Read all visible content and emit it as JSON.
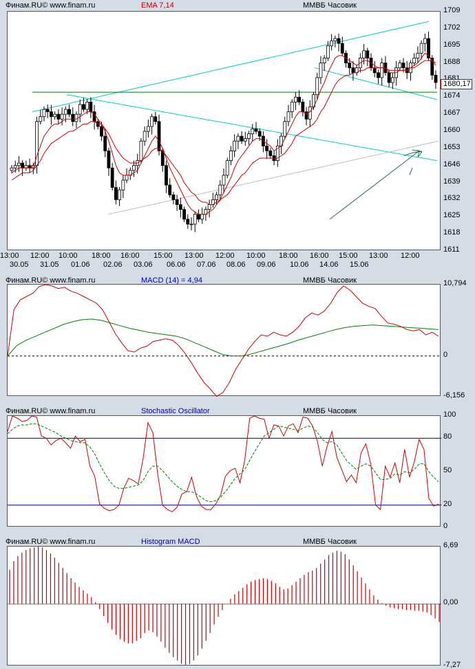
{
  "panels": {
    "price": {
      "source": "Финам.RU©  www.finam.ru",
      "indicator": "EMA 7,14",
      "security": "ММВБ Часовик",
      "last_price": "1680,17",
      "y_labels": [
        "1709",
        "1702",
        "1695",
        "1688",
        "1681",
        "1674",
        "1667",
        "1660",
        "1653",
        "1646",
        "1639",
        "1632",
        "1625",
        "1618",
        "1611"
      ]
    },
    "macd": {
      "source": "Финам.RU©  www.finam.ru",
      "indicator": "MACD (14) = 4,94",
      "security": "ММВБ Часовик",
      "y_labels": [
        "10,794",
        "0",
        "-6,156"
      ]
    },
    "stoch": {
      "source": "Финам.RU©  www.finam.ru",
      "indicator": "Stochastic Oscillator",
      "security": "ММВБ Часовик",
      "y_labels": [
        "100",
        "80",
        "50",
        "20",
        "0"
      ]
    },
    "hist": {
      "source": "Финам.RU©  www.finam.ru",
      "indicator": "Histogram MACD",
      "security": "ММВБ Часовик",
      "y_labels": [
        "6,69",
        "0,00",
        "-7,27"
      ]
    }
  },
  "x_axis": {
    "times": [
      "13:00",
      "12:00",
      "10:00",
      "18:00",
      "16:00",
      "15:00",
      "13:00",
      "12:00",
      "10:00",
      "18:00",
      "16:00",
      "15:00",
      "13:00",
      "12:00"
    ],
    "dates": [
      "30.05",
      "31.05",
      "01.06",
      "02.06",
      "03.06",
      "06.06",
      "07.06",
      "08.06",
      "09.06",
      "10.06",
      "14.06",
      "15.06"
    ]
  },
  "colors": {
    "up": "#ffffff",
    "down": "#000000",
    "ema_fast": "#cc0000",
    "ema_slow": "#cc0000",
    "cyan": "#00cccc",
    "green": "#008000",
    "arrow": "#1f6b4a",
    "macd_line": "#cc0000",
    "signal": "#008000",
    "stoch_k": "#cc0000",
    "stoch_d": "#008000",
    "hist": "#cc0000"
  },
  "chart_data": [
    {
      "type": "candlestick",
      "ylim": [
        1611,
        1709
      ],
      "closes": [
        1645,
        1646,
        1647,
        1645,
        1646,
        1645,
        1646,
        1664,
        1666,
        1669,
        1668,
        1666,
        1667,
        1665,
        1667,
        1669,
        1667,
        1664,
        1667,
        1671,
        1669,
        1672,
        1668,
        1664,
        1662,
        1658,
        1652,
        1645,
        1637,
        1632,
        1636,
        1640,
        1642,
        1644,
        1646,
        1648,
        1656,
        1660,
        1662,
        1666,
        1664,
        1652,
        1646,
        1638,
        1634,
        1632,
        1630,
        1628,
        1624,
        1622,
        1622,
        1626,
        1624,
        1626,
        1628,
        1630,
        1632,
        1634,
        1638,
        1642,
        1648,
        1652,
        1656,
        1658,
        1656,
        1657,
        1659,
        1661,
        1660,
        1658,
        1654,
        1652,
        1650,
        1648,
        1654,
        1658,
        1664,
        1668,
        1672,
        1674,
        1672,
        1668,
        1665,
        1670,
        1675,
        1682,
        1688,
        1690,
        1695,
        1697,
        1698,
        1696,
        1692,
        1688,
        1686,
        1684,
        1686,
        1690,
        1693,
        1690,
        1686,
        1684,
        1682,
        1688,
        1684,
        1680,
        1682,
        1686,
        1688,
        1686,
        1684,
        1688,
        1690,
        1692,
        1696,
        1698,
        1690,
        1683,
        1680
      ],
      "ema_fast": [
        1643,
        1644,
        1645,
        1645,
        1645,
        1645,
        1645,
        1650,
        1654,
        1658,
        1660,
        1662,
        1663,
        1663,
        1664,
        1665,
        1665,
        1665,
        1665,
        1666,
        1667,
        1668,
        1668,
        1667,
        1665,
        1663,
        1660,
        1656,
        1651,
        1646,
        1643,
        1642,
        1642,
        1642,
        1643,
        1644,
        1647,
        1650,
        1653,
        1656,
        1658,
        1656,
        1653,
        1649,
        1645,
        1642,
        1639,
        1636,
        1633,
        1630,
        1628,
        1627,
        1626,
        1626,
        1626,
        1627,
        1628,
        1630,
        1632,
        1635,
        1638,
        1641,
        1645,
        1648,
        1650,
        1652,
        1654,
        1656,
        1657,
        1657,
        1656,
        1655,
        1654,
        1652,
        1653,
        1654,
        1657,
        1660,
        1663,
        1666,
        1668,
        1668,
        1667,
        1668,
        1670,
        1673,
        1677,
        1680,
        1684,
        1687,
        1690,
        1691,
        1691,
        1690,
        1689,
        1688,
        1687,
        1688,
        1689,
        1689,
        1688,
        1687,
        1686,
        1686,
        1686,
        1684,
        1684,
        1684,
        1685,
        1685,
        1685,
        1686,
        1687,
        1688,
        1690,
        1692,
        1691,
        1689,
        1687
      ],
      "ema_slow": [
        1640,
        1641,
        1642,
        1643,
        1643,
        1643,
        1644,
        1646,
        1648,
        1651,
        1653,
        1655,
        1656,
        1657,
        1658,
        1659,
        1660,
        1660,
        1661,
        1662,
        1663,
        1663,
        1664,
        1664,
        1663,
        1663,
        1661,
        1659,
        1656,
        1653,
        1651,
        1649,
        1648,
        1647,
        1647,
        1647,
        1648,
        1649,
        1650,
        1652,
        1653,
        1653,
        1652,
        1650,
        1648,
        1646,
        1644,
        1642,
        1639,
        1637,
        1635,
        1634,
        1632,
        1631,
        1631,
        1630,
        1630,
        1631,
        1632,
        1633,
        1634,
        1636,
        1638,
        1640,
        1642,
        1643,
        1645,
        1647,
        1648,
        1649,
        1649,
        1649,
        1649,
        1649,
        1649,
        1650,
        1651,
        1653,
        1655,
        1658,
        1659,
        1660,
        1661,
        1662,
        1663,
        1665,
        1668,
        1670,
        1673,
        1676,
        1679,
        1681,
        1682,
        1683,
        1683,
        1684,
        1684,
        1685,
        1685,
        1686,
        1686,
        1686,
        1686,
        1686,
        1686,
        1685,
        1685,
        1685,
        1685,
        1685,
        1685,
        1686,
        1686,
        1687,
        1688,
        1689,
        1689,
        1689,
        1688
      ]
    },
    {
      "type": "line",
      "ylim": [
        -6.156,
        10.794
      ],
      "series": [
        {
          "values": [
            0,
            7,
            8.5,
            9,
            9.5,
            10.5,
            10.8,
            10.6,
            10.2,
            10.4,
            9.8,
            9.5,
            9,
            8.5,
            8,
            7,
            5.2,
            3.4,
            2,
            0.8,
            0.6,
            1.2,
            1.5,
            2.2,
            2.4,
            2.6,
            2.4,
            1.6,
            0.4,
            -1,
            -2.6,
            -4,
            -5,
            -6.1,
            -5.5,
            -4,
            -2,
            -0.5,
            1,
            2.2,
            3.2,
            3,
            3.6,
            3.2,
            3,
            3.6,
            4.5,
            5.8,
            6.5,
            6.2,
            6.8,
            8,
            9.6,
            10.6,
            10,
            9,
            8,
            7.5,
            7.2,
            6,
            5,
            4.8,
            4.5,
            4,
            3.8,
            4,
            3.2,
            3.6,
            3
          ]
        },
        {
          "values": [
            0,
            1.6,
            2.4,
            3,
            3.6,
            4.2,
            4.8,
            5.2,
            5.5,
            5.6,
            5.4,
            5,
            4.6,
            4.2,
            3.9,
            3.6,
            3.4,
            3.2,
            3,
            2.6,
            2,
            1.4,
            0.8,
            0.2,
            0,
            0,
            0.3,
            0.7,
            1.1,
            1.5,
            1.9,
            2.4,
            2.8,
            3.2,
            3.6,
            4,
            4.3,
            4.5,
            4.6,
            4.7,
            4.6,
            4.5,
            4.4,
            4.3,
            4.2,
            4.1,
            4
          ]
        }
      ]
    },
    {
      "type": "line",
      "ylim": [
        0,
        100
      ],
      "levels": [
        20,
        80
      ],
      "series": [
        {
          "values": [
            86,
            100,
            98,
            95,
            96,
            100,
            99,
            82,
            80,
            74,
            78,
            80,
            76,
            71,
            82,
            77,
            79,
            55,
            46,
            21,
            17,
            15,
            16,
            20,
            35,
            44,
            42,
            39,
            62,
            94,
            85,
            48,
            20,
            16,
            14,
            18,
            30,
            32,
            45,
            28,
            19,
            16,
            16,
            21,
            29,
            46,
            51,
            53,
            40,
            61,
            98,
            100,
            98,
            97,
            80,
            92,
            91,
            82,
            91,
            93,
            85,
            99,
            98,
            91,
            77,
            55,
            73,
            86,
            63,
            52,
            41,
            47,
            40,
            67,
            75,
            57,
            20,
            16,
            55,
            45,
            58,
            40,
            70,
            45,
            59,
            79,
            70,
            26,
            19,
            21
          ]
        },
        {
          "values": [
            84,
            88,
            91,
            92,
            92,
            93,
            93,
            91,
            89,
            87,
            85,
            82,
            80,
            78,
            77,
            76,
            76,
            72,
            66,
            57,
            49,
            42,
            37,
            35,
            35,
            36,
            37,
            38,
            42,
            50,
            55,
            55,
            51,
            46,
            41,
            37,
            34,
            32,
            32,
            30,
            27,
            24,
            23,
            24,
            27,
            32,
            38,
            44,
            48,
            52,
            60,
            68,
            75,
            82,
            85,
            88,
            91,
            90,
            89,
            88,
            87,
            89,
            91,
            90,
            85,
            79,
            76,
            77,
            74,
            67,
            60,
            56,
            52,
            55,
            57,
            55,
            49,
            43,
            43,
            44,
            48,
            47,
            50,
            49,
            52,
            57,
            57,
            50,
            45,
            41
          ]
        }
      ]
    },
    {
      "type": "bar",
      "ylim": [
        -7.27,
        6.69
      ],
      "values": [
        4.0,
        5.0,
        5.6,
        6.0,
        6.3,
        6.5,
        6.6,
        6.7,
        6.6,
        6.3,
        5.9,
        5.4,
        4.8,
        4.2,
        3.6,
        3.0,
        2.5,
        2.0,
        1.6,
        1.2,
        0.8,
        0.2,
        -0.6,
        -1.4,
        -2.2,
        -3.0,
        -3.6,
        -4.1,
        -4.4,
        -4.6,
        -4.6,
        -4.3,
        -4.0,
        -3.4,
        -3.1,
        -3.3,
        -3.8,
        -4.4,
        -5.1,
        -5.7,
        -6.2,
        -6.6,
        -7.0,
        -7.1,
        -7.0,
        -6.6,
        -6.0,
        -5.2,
        -4.3,
        -3.4,
        -2.4,
        -1.5,
        -0.7,
        0.0,
        0.6,
        1.1,
        1.5,
        1.9,
        2.3,
        2.6,
        2.8,
        2.9,
        3.0,
        2.9,
        2.7,
        2.4,
        2.0,
        1.7,
        1.8,
        2.2,
        2.6,
        3.0,
        3.4,
        3.7,
        3.9,
        4.2,
        4.7,
        5.2,
        5.7,
        6.0,
        6.2,
        6.1,
        5.8,
        5.2,
        4.5,
        3.8,
        3.1,
        2.4,
        1.7,
        1.0,
        0.5,
        0.1,
        -0.2,
        -0.4,
        -0.5,
        -0.6,
        -0.6,
        -0.7,
        -0.7,
        -0.8,
        -0.8,
        -0.9,
        -1.0,
        -1.3,
        -1.7,
        -2.1
      ]
    }
  ]
}
